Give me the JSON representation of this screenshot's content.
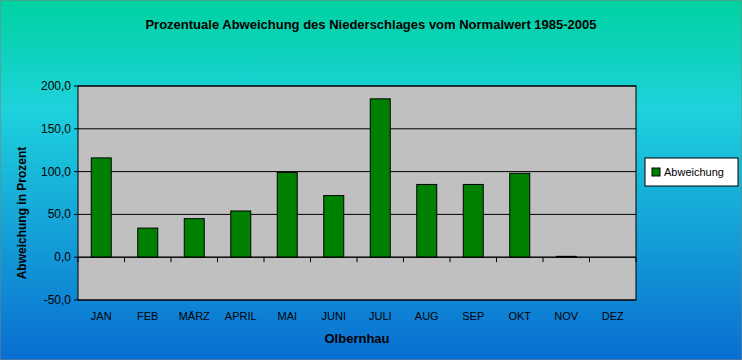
{
  "chart_data": {
    "type": "bar",
    "title": "Prozentuale Abweichung des Niederschlages vom Normalwert 1985-2005",
    "x_label": "Olbernhau",
    "y_label": "Abweichung in Prozent",
    "categories": [
      "JAN",
      "FEB",
      "MÄRZ",
      "APRIL",
      "MAI",
      "JUNI",
      "JULI",
      "AUG",
      "SEP",
      "OKT",
      "NOV",
      "DEZ"
    ],
    "series": [
      {
        "name": "Abweichung",
        "color": "#008000",
        "values": [
          116,
          34,
          45,
          54,
          99,
          72,
          185,
          85,
          85,
          98,
          1,
          0
        ]
      }
    ],
    "ylim": [
      -50,
      200
    ],
    "yticks": [
      {
        "value": -50,
        "label": "-50,0"
      },
      {
        "value": 0,
        "label": "0,0"
      },
      {
        "value": 50,
        "label": "50,0"
      },
      {
        "value": 100,
        "label": "100,0"
      },
      {
        "value": 150,
        "label": "150,0"
      },
      {
        "value": 200,
        "label": "200,0"
      }
    ],
    "grid": true,
    "legend": "right"
  }
}
